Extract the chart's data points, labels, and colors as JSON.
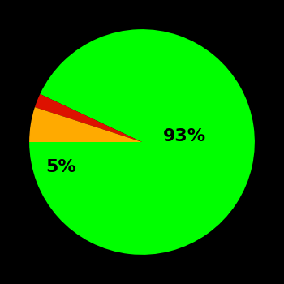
{
  "slices": [
    93,
    2,
    5
  ],
  "colors": [
    "#00ff00",
    "#dd1100",
    "#ffaa00"
  ],
  "background_color": "#000000",
  "text_color": "#000000",
  "font_size": 16,
  "startangle": 180,
  "figsize": [
    3.5,
    3.5
  ],
  "dpi": 100
}
